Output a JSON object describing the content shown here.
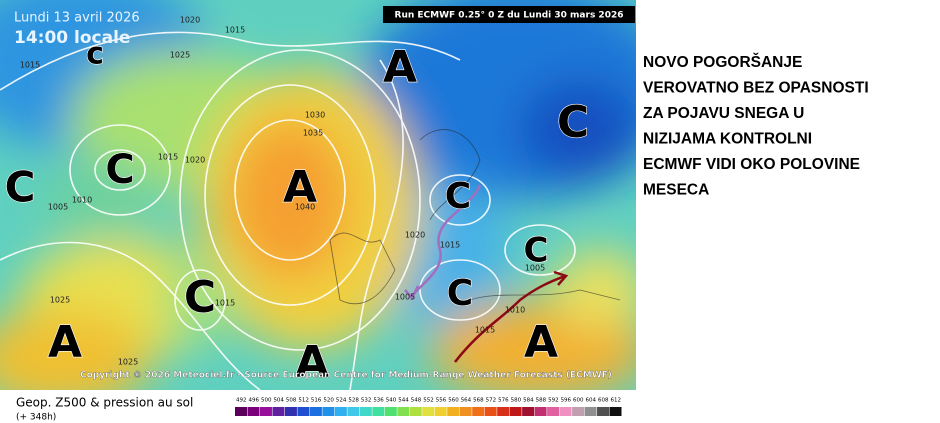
{
  "header": {
    "date": "Lundi 13 avril 2026",
    "time": "14:00 locale",
    "run": "Run ECMWF 0.25° 0 Z du Lundi 30 mars 2026"
  },
  "map": {
    "systems": [
      "A",
      "C",
      "c",
      "C",
      "C",
      "A",
      "C",
      "C",
      "C",
      "C",
      "A",
      "A",
      "A"
    ],
    "isobars": [
      "1015",
      "1020",
      "1025",
      "1015",
      "1030",
      "1035",
      "1040",
      "1020",
      "1015",
      "1010",
      "1005",
      "1020",
      "1015",
      "1005",
      "1005",
      "1015",
      "1025",
      "1025",
      "1010",
      "1015"
    ],
    "copyright": "Copyright © 2026 Meteociel.fr - Source European Centre for Medium-Range Weather Forecasts (ECMWF)"
  },
  "caption": {
    "title": "Geop. Z500 & pression au sol",
    "lead": "(+ 348h)"
  },
  "legend": {
    "labels": [
      "492",
      "496",
      "500",
      "504",
      "508",
      "512",
      "516",
      "520",
      "524",
      "528",
      "532",
      "536",
      "540",
      "544",
      "548",
      "552",
      "556",
      "560",
      "564",
      "568",
      "572",
      "576",
      "580",
      "584",
      "588",
      "592",
      "596",
      "600",
      "604",
      "608",
      "612"
    ]
  },
  "note": {
    "lines": [
      "NOVO POGORŠANJE",
      "VEROVATNO BEZ OPASNOSTI",
      "ZA POJAVU SNEGA U",
      "NIZIJAMA KONTROLNI",
      "ECMWF VIDI OKO POLOVINE",
      "MESECA"
    ]
  }
}
